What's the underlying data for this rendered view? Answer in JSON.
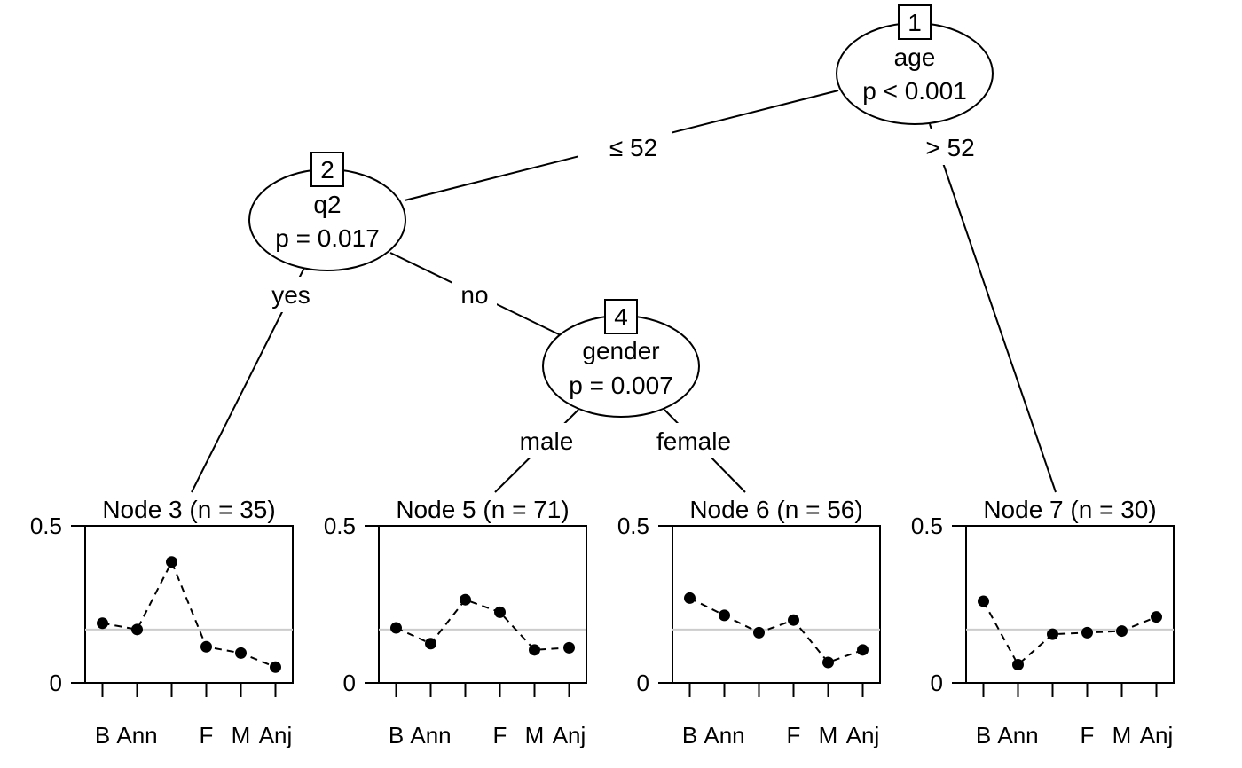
{
  "tree": {
    "inner_nodes": [
      {
        "id": "1",
        "variable": "age",
        "pvalue": "p < 0.001"
      },
      {
        "id": "2",
        "variable": "q2",
        "pvalue": "p = 0.017"
      },
      {
        "id": "4",
        "variable": "gender",
        "pvalue": "p = 0.007"
      }
    ],
    "edge_labels": {
      "age_left": "≤ 52",
      "age_right": "> 52",
      "q2_left": "yes",
      "q2_right": "no",
      "gender_left": "male",
      "gender_right": "female"
    }
  },
  "chart_data": [
    {
      "type": "line",
      "title": "Node 3 (n = 35)",
      "categories": [
        "B",
        "Ann",
        "",
        "F",
        "M",
        "Anj"
      ],
      "values": [
        0.19,
        0.17,
        0.385,
        0.115,
        0.095,
        0.05
      ],
      "reference_value": 0.17,
      "ylim": [
        0,
        0.5
      ],
      "yticks": [
        "0",
        "0.5"
      ]
    },
    {
      "type": "line",
      "title": "Node 5 (n = 71)",
      "categories": [
        "B",
        "Ann",
        "",
        "F",
        "M",
        "Anj"
      ],
      "values": [
        0.175,
        0.125,
        0.265,
        0.225,
        0.105,
        0.112
      ],
      "reference_value": 0.17,
      "ylim": [
        0,
        0.5
      ],
      "yticks": [
        "0",
        "0.5"
      ]
    },
    {
      "type": "line",
      "title": "Node 6 (n = 56)",
      "categories": [
        "B",
        "Ann",
        "",
        "F",
        "M",
        "Anj"
      ],
      "values": [
        0.27,
        0.215,
        0.16,
        0.2,
        0.065,
        0.105
      ],
      "reference_value": 0.17,
      "ylim": [
        0,
        0.5
      ],
      "yticks": [
        "0",
        "0.5"
      ]
    },
    {
      "type": "line",
      "title": "Node 7 (n = 30)",
      "categories": [
        "B",
        "Ann",
        "",
        "F",
        "M",
        "Anj"
      ],
      "values": [
        0.26,
        0.058,
        0.155,
        0.16,
        0.165,
        0.21
      ],
      "reference_value": 0.17,
      "ylim": [
        0,
        0.5
      ],
      "yticks": [
        "0",
        "0.5"
      ]
    }
  ]
}
